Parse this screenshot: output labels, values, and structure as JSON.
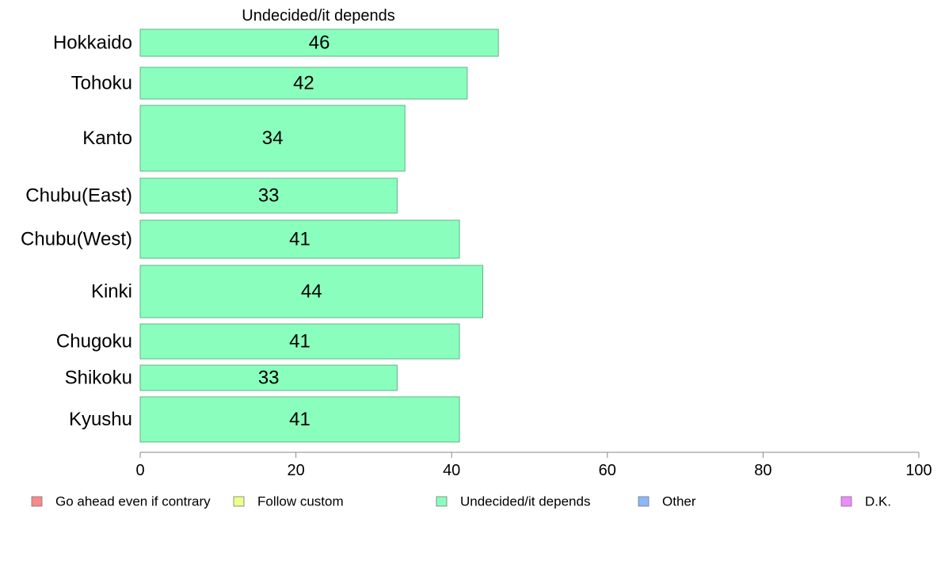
{
  "chart_data": {
    "type": "bar",
    "orientation": "horizontal",
    "title": "Undecided/it depends",
    "categories": [
      "Hokkaido",
      "Tohoku",
      "Kanto",
      "Chubu(East)",
      "Chubu(West)",
      "Kinki",
      "Chugoku",
      "Shikoku",
      "Kyushu"
    ],
    "values": [
      46,
      42,
      34,
      33,
      41,
      44,
      41,
      33,
      41
    ],
    "data_labels": [
      "46",
      "42",
      "34",
      "33",
      "41",
      "44",
      "41",
      "33",
      "41"
    ],
    "xlim": [
      0,
      100
    ],
    "xticks": [
      0,
      20,
      40,
      60,
      80,
      100
    ],
    "xtick_labels": [
      "0",
      "20",
      "40",
      "60",
      "80",
      "100"
    ],
    "bar_color": "#8affbd",
    "bar_edge_color": "#5fb487",
    "grid": false,
    "legend_position": "bottom",
    "legend": [
      {
        "label": "Go ahead even if contrary",
        "color": "#f88a8a"
      },
      {
        "label": "Follow custom",
        "color": "#eeff8a"
      },
      {
        "label": "Undecided/it depends",
        "color": "#8affbd"
      },
      {
        "label": "Other",
        "color": "#8ab8ff"
      },
      {
        "label": "D.K.",
        "color": "#ee8aff"
      }
    ]
  }
}
